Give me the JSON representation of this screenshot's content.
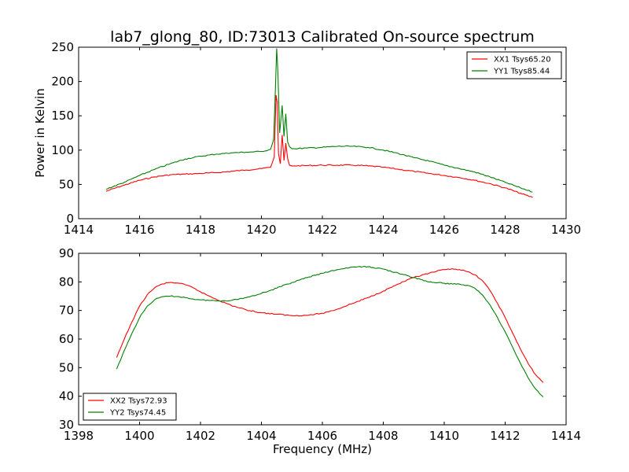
{
  "title": "lab7_glong_80, ID:73013 Calibrated On-source spectrum",
  "colors": {
    "red": "#ff0000",
    "green": "#008000"
  },
  "chart_data": [
    {
      "type": "line",
      "xlabel": "",
      "ylabel": "Power in Kelvin",
      "xlim": [
        1414,
        1430
      ],
      "ylim": [
        0,
        250
      ],
      "xticks": [
        "1414",
        "1416",
        "1418",
        "1420",
        "1422",
        "1424",
        "1426",
        "1428",
        "1430"
      ],
      "yticks": [
        "0",
        "50",
        "100",
        "150",
        "200",
        "250"
      ],
      "legend_position": "top-right",
      "series": [
        {
          "name": "XX1 Tsys65.20",
          "color": "#ff0000",
          "x": [
            1414.9,
            1415.5,
            1416.0,
            1416.5,
            1417.0,
            1417.5,
            1418.0,
            1418.5,
            1419.0,
            1419.5,
            1420.0,
            1420.3,
            1420.42,
            1420.48,
            1420.52,
            1420.56,
            1420.62,
            1420.68,
            1420.74,
            1420.8,
            1420.86,
            1420.92,
            1421.0,
            1421.1,
            1421.5,
            1422.0,
            1422.5,
            1423.0,
            1423.5,
            1424.0,
            1424.5,
            1425.0,
            1425.5,
            1426.0,
            1426.5,
            1427.0,
            1427.5,
            1428.0,
            1428.5,
            1428.9
          ],
          "y": [
            40,
            49,
            56,
            61,
            64,
            65,
            66,
            67,
            69,
            71,
            73,
            75,
            90,
            180,
            170,
            95,
            80,
            122,
            85,
            110,
            88,
            78,
            77,
            77,
            77.5,
            78,
            78,
            78,
            77,
            75,
            72,
            69,
            66,
            63,
            60,
            56,
            51,
            45,
            37,
            31
          ]
        },
        {
          "name": "YY1 Tsys85.44",
          "color": "#008000",
          "x": [
            1414.9,
            1415.5,
            1416.0,
            1416.5,
            1417.0,
            1417.5,
            1418.0,
            1418.5,
            1419.0,
            1419.5,
            1420.0,
            1420.3,
            1420.4,
            1420.46,
            1420.5,
            1420.54,
            1420.6,
            1420.68,
            1420.74,
            1420.8,
            1420.86,
            1420.92,
            1421.0,
            1421.1,
            1421.5,
            1422.0,
            1422.5,
            1423.0,
            1423.5,
            1424.0,
            1424.5,
            1425.0,
            1425.5,
            1426.0,
            1426.5,
            1427.0,
            1427.5,
            1428.0,
            1428.5,
            1428.9
          ],
          "y": [
            43,
            53,
            63,
            72,
            80,
            87,
            91,
            94,
            96,
            97,
            98,
            101,
            115,
            190,
            248,
            215,
            125,
            165,
            120,
            153,
            112,
            105,
            102,
            102,
            103,
            104,
            105.5,
            105.5,
            104,
            100,
            95,
            89,
            84,
            78,
            73,
            68,
            61,
            53,
            45,
            39
          ]
        }
      ]
    },
    {
      "type": "line",
      "xlabel": "Frequency (MHz)",
      "ylabel": "",
      "xlim": [
        1398,
        1414
      ],
      "ylim": [
        30,
        90
      ],
      "xticks": [
        "1398",
        "1400",
        "1402",
        "1404",
        "1406",
        "1408",
        "1410",
        "1412",
        "1414"
      ],
      "yticks": [
        "30",
        "40",
        "50",
        "60",
        "70",
        "80",
        "90"
      ],
      "legend_position": "bottom-left",
      "series": [
        {
          "name": "XX2 Tsys72.93",
          "color": "#ff0000",
          "x": [
            1399.25,
            1399.5,
            1399.75,
            1400.0,
            1400.25,
            1400.5,
            1400.75,
            1401.0,
            1401.25,
            1401.5,
            1401.75,
            1402.0,
            1402.5,
            1403.0,
            1403.5,
            1404.0,
            1404.5,
            1405.0,
            1405.5,
            1406.0,
            1406.5,
            1407.0,
            1407.5,
            1408.0,
            1408.5,
            1409.0,
            1409.5,
            1410.0,
            1410.25,
            1410.5,
            1410.75,
            1411.0,
            1411.25,
            1411.5,
            1411.75,
            1412.0,
            1412.25,
            1412.5,
            1412.75,
            1413.0,
            1413.25
          ],
          "y": [
            53.5,
            60,
            66,
            71.5,
            75.5,
            78,
            79.3,
            79.8,
            79.6,
            79,
            78,
            76.5,
            74,
            71.8,
            70.2,
            69.2,
            68.7,
            68.2,
            68.3,
            69,
            70.5,
            72.5,
            74.5,
            76.8,
            79.3,
            81.5,
            83,
            84.3,
            84.6,
            84.3,
            83.6,
            82.5,
            80.5,
            77,
            72.5,
            67.5,
            62,
            56.5,
            51.5,
            47.5,
            44.8
          ]
        },
        {
          "name": "YY2 Tsys74.45",
          "color": "#008000",
          "x": [
            1399.25,
            1399.5,
            1399.75,
            1400.0,
            1400.25,
            1400.5,
            1400.75,
            1401.0,
            1401.25,
            1401.5,
            1401.75,
            1402.0,
            1402.5,
            1403.0,
            1403.5,
            1404.0,
            1404.5,
            1405.0,
            1405.5,
            1406.0,
            1406.5,
            1407.0,
            1407.5,
            1408.0,
            1408.5,
            1409.0,
            1409.5,
            1410.0,
            1410.5,
            1410.75,
            1411.0,
            1411.25,
            1411.5,
            1411.75,
            1412.0,
            1412.25,
            1412.5,
            1412.75,
            1413.0,
            1413.25
          ],
          "y": [
            49.5,
            56,
            62,
            67.5,
            71.5,
            73.8,
            74.8,
            75,
            74.9,
            74.5,
            74,
            73.7,
            73.4,
            73.5,
            74.5,
            76,
            77.8,
            79.8,
            81.5,
            83,
            84.3,
            85.2,
            85.3,
            84.5,
            83,
            81.5,
            80,
            79.5,
            79.2,
            78.8,
            77.8,
            75.5,
            72,
            67.5,
            62.5,
            57,
            51.5,
            46.5,
            42.5,
            39.8
          ]
        }
      ]
    }
  ]
}
